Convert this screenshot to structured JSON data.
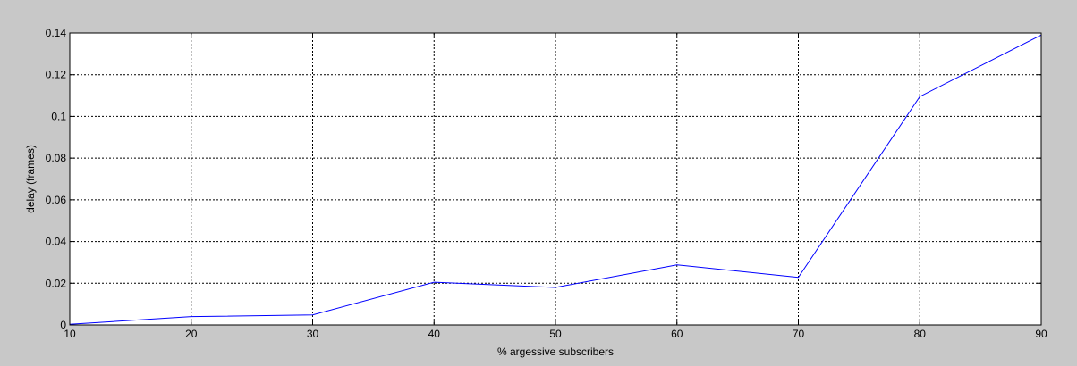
{
  "figure": {
    "background": "#c8c8c8"
  },
  "chart_data": {
    "type": "line",
    "title": "",
    "xlabel": "% argessive subscribers",
    "ylabel": "delay (frames)",
    "xlim": [
      10,
      90
    ],
    "ylim": [
      0,
      0.14
    ],
    "grid": true,
    "x_ticks": [
      10,
      20,
      30,
      40,
      50,
      60,
      70,
      80,
      90
    ],
    "y_ticks": [
      0,
      0.02,
      0.04,
      0.06,
      0.08,
      0.1,
      0.12,
      0.14
    ],
    "x_tick_labels": [
      "10",
      "20",
      "30",
      "40",
      "50",
      "60",
      "70",
      "80",
      "90"
    ],
    "y_tick_labels": [
      "0",
      "0.02",
      "0.04",
      "0.06",
      "0.08",
      "0.1",
      "0.12",
      "0.14"
    ],
    "x": [
      10,
      20,
      30,
      40,
      50,
      60,
      70,
      80,
      90
    ],
    "series": [
      {
        "values": [
          0.0003,
          0.004,
          0.0048,
          0.0205,
          0.018,
          0.0288,
          0.0228,
          0.1095,
          0.139
        ],
        "color": "#0000ff"
      }
    ]
  }
}
